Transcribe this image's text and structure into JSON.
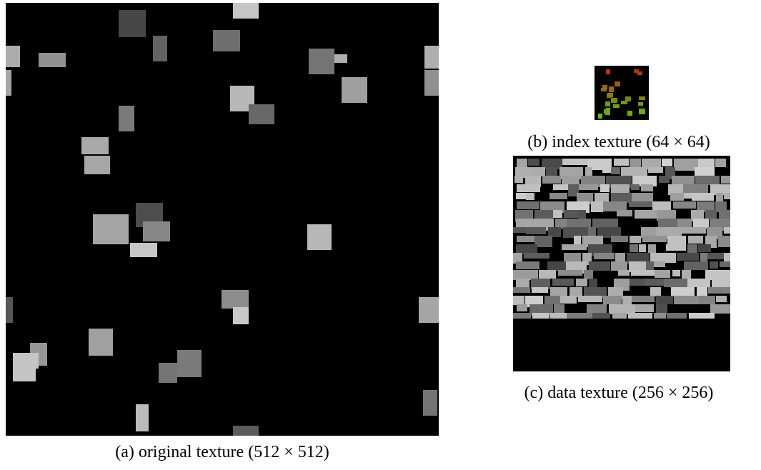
{
  "figure": {
    "panels": [
      {
        "caption": "(a) original texture (512 × 512)"
      },
      {
        "caption": "(b) index texture (64 × 64)"
      },
      {
        "caption": "(c) data texture (256 × 256)"
      }
    ]
  }
}
